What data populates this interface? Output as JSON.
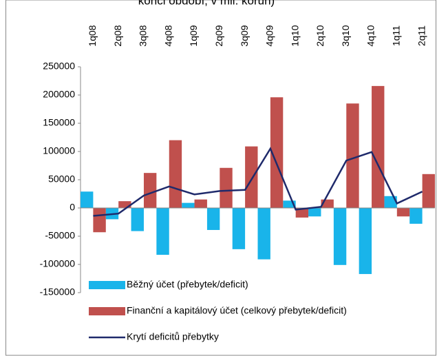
{
  "chart_data": {
    "type": "bar",
    "title": "konci období, v mil. korun)",
    "categories": [
      "1q08",
      "2q08",
      "3q08",
      "4q08",
      "1q09",
      "2q09",
      "3q09",
      "4q09",
      "1q10",
      "2q10",
      "3q10",
      "4q10",
      "1q11",
      "2q11"
    ],
    "series": [
      {
        "name": "Běžný účet (přebytek/deficit)",
        "color": "#19b4ea",
        "type": "bar",
        "values": [
          29000,
          -20000,
          -41000,
          -83000,
          9000,
          -39000,
          -73000,
          -91000,
          13000,
          -15000,
          -101000,
          -117000,
          21000,
          -28000
        ]
      },
      {
        "name": "Finanční a kapitálový účet (celkový přebytek/deficit)",
        "color": "#c0504d",
        "type": "bar",
        "values": [
          -43000,
          12000,
          62000,
          120000,
          15000,
          71000,
          109000,
          196000,
          -17000,
          15000,
          185000,
          216000,
          -15000,
          60000
        ]
      },
      {
        "name": "Krytí deficitů přebytky",
        "color": "#1f2a6b",
        "type": "line",
        "values": [
          -14000,
          -10000,
          22000,
          38000,
          24000,
          30000,
          32000,
          105000,
          -3000,
          2000,
          84000,
          99000,
          8000,
          29000
        ]
      }
    ],
    "ylim": [
      -150000,
      250000
    ],
    "yticks": [
      -150000,
      -100000,
      -50000,
      0,
      50000,
      100000,
      150000,
      200000,
      250000
    ],
    "legend": "lower left",
    "grid": false
  }
}
